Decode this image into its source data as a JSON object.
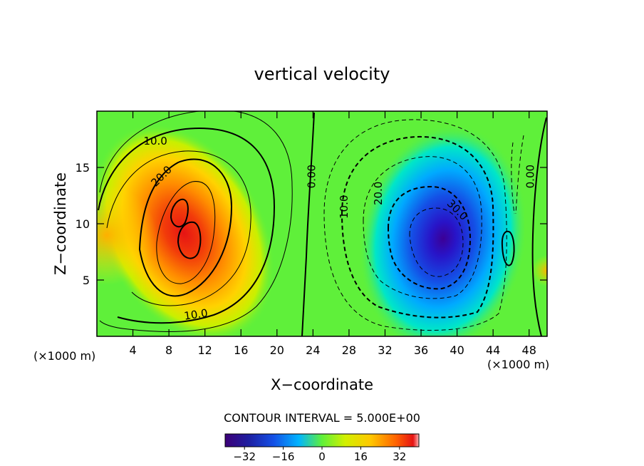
{
  "chart_data": {
    "type": "heatmap",
    "title": "vertical velocity",
    "xlabel": "X−coordinate",
    "ylabel": "Z−coordinate",
    "x_unit_left": "(×1000 m)",
    "x_unit_right": "(×1000 m)",
    "xlim": [
      0,
      50
    ],
    "ylim": [
      0,
      20
    ],
    "x_ticks": [
      4,
      8,
      12,
      16,
      20,
      24,
      28,
      32,
      36,
      40,
      44,
      48
    ],
    "x_tick_labels": [
      "4",
      "8",
      "12",
      "16",
      "20",
      "24",
      "28",
      "32",
      "36",
      "40",
      "44",
      "48"
    ],
    "y_ticks": [
      5,
      10,
      15
    ],
    "y_tick_labels": [
      "5",
      "10",
      "15"
    ],
    "contour_interval_label": "CONTOUR INTERVAL = 5.000E+00",
    "contour_labels": [
      {
        "text": "10.0",
        "x": 6.5,
        "y": 17.3,
        "rotation": 0
      },
      {
        "text": "20.0",
        "x": 7.2,
        "y": 14.2,
        "rotation": -45
      },
      {
        "text": "10.0",
        "x": 11.0,
        "y": 1.9,
        "rotation": -8
      },
      {
        "text": "0.00",
        "x": 23.9,
        "y": 14.2,
        "rotation": -90
      },
      {
        "text": "10.0",
        "x": 27.5,
        "y": 11.5,
        "rotation": -90
      },
      {
        "text": "20.0",
        "x": 31.3,
        "y": 12.7,
        "rotation": -90
      },
      {
        "text": "30.0",
        "x": 40.0,
        "y": 11.2,
        "rotation": 45
      },
      {
        "text": "0.00",
        "x": 48.2,
        "y": 14.2,
        "rotation": -90
      }
    ],
    "features": [
      {
        "name": "updraft",
        "x_center": 10,
        "z_center": 9,
        "peak": 30
      },
      {
        "name": "downdraft",
        "x_center": 39,
        "z_center": 8.5,
        "peak": -35
      }
    ],
    "colorbar": {
      "range": [
        -40,
        40
      ],
      "ticks": [
        -32,
        -16,
        0,
        16,
        32
      ],
      "tick_labels": [
        "−32",
        "−16",
        "0",
        "16",
        "32"
      ]
    },
    "colors": {
      "min": "#3c0078",
      "blue": "#1436d2",
      "cyan": "#00c8ff",
      "zero_green": "#5ff03a",
      "yellow": "#f0f000",
      "orange": "#ff7800",
      "max": "#e61414"
    }
  }
}
